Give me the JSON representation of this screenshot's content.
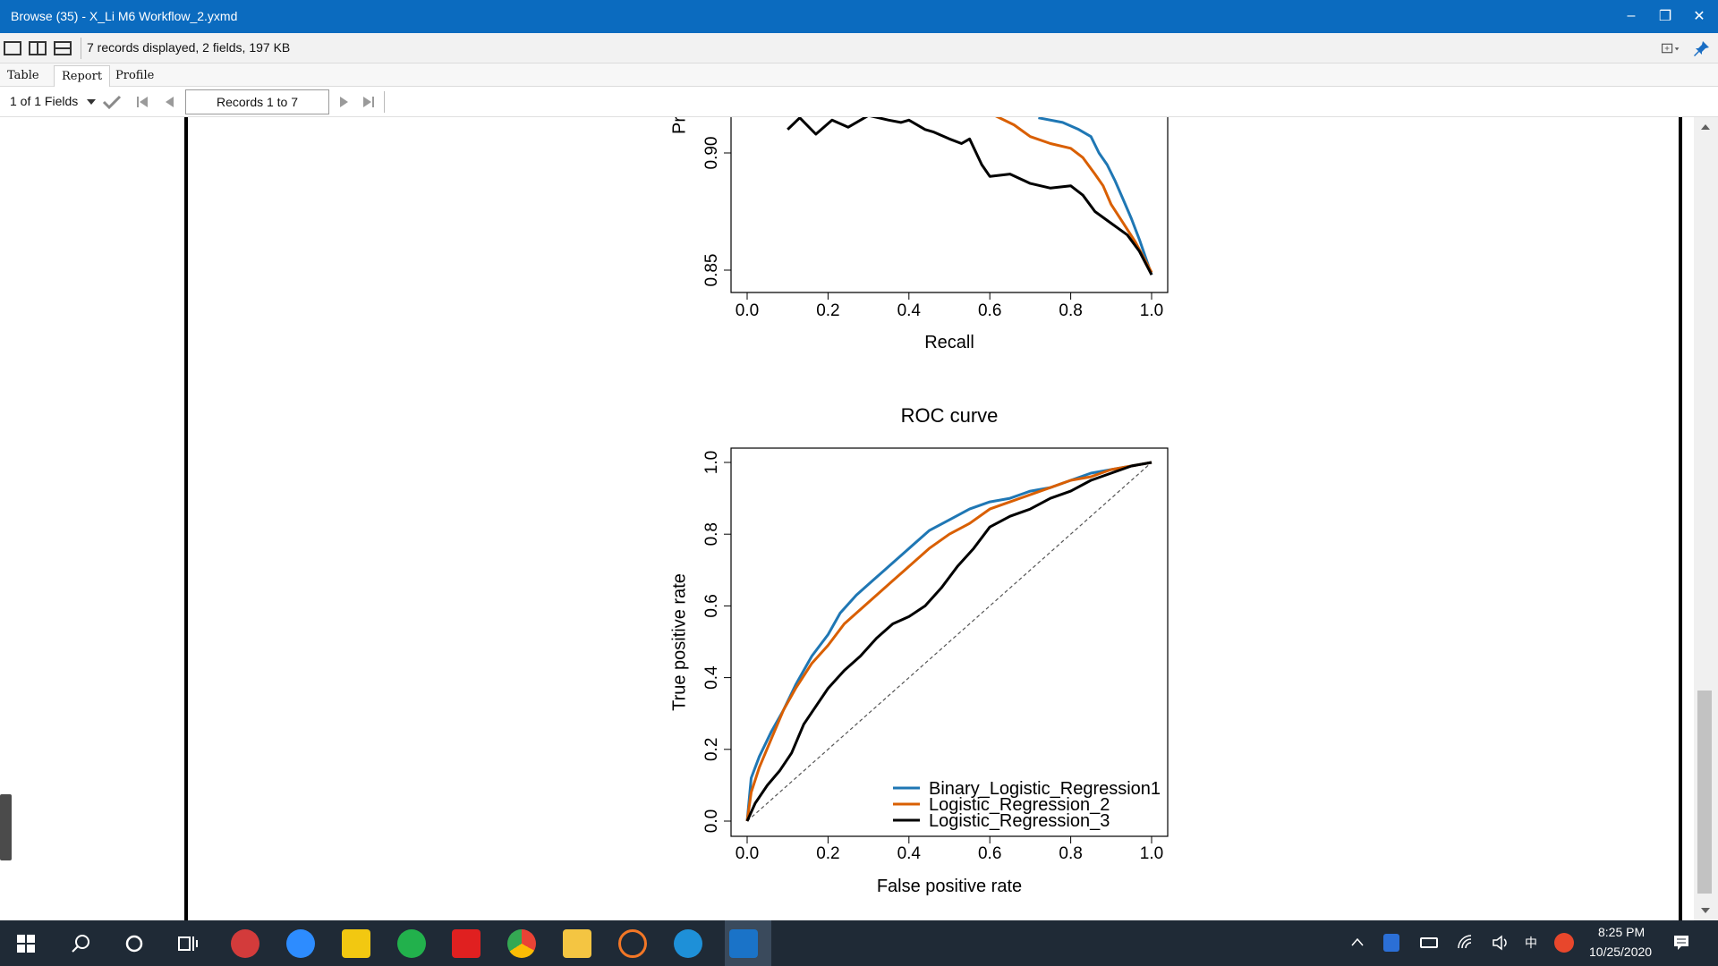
{
  "window": {
    "title": "Browse (35) - X_Li M6 Workflow_2.yxmd",
    "buttons": {
      "minimize": "–",
      "restore": "❐",
      "close": "✕"
    }
  },
  "toolbar": {
    "summary": "7 records displayed, 2 fields, 197 KB"
  },
  "tabs": [
    {
      "label": "Table",
      "active": false
    },
    {
      "label": "Report",
      "active": true
    },
    {
      "label": "Profile",
      "active": false
    }
  ],
  "navbar": {
    "fields_label": "1 of 1 Fields",
    "records_label": "Records 1 to 7"
  },
  "colors": {
    "titlebar": "#0b6bbf",
    "series_blue": "#1f77b4",
    "series_orange": "#d95f02",
    "series_black": "#000000"
  },
  "chart_data": [
    {
      "type": "line",
      "title": "",
      "xlabel": "Recall",
      "ylabel": "Pr",
      "xlim": [
        0.0,
        1.0
      ],
      "ylim": [
        0.85,
        0.92
      ],
      "x_ticks": [
        "0.0",
        "0.2",
        "0.4",
        "0.6",
        "0.8",
        "1.0"
      ],
      "y_ticks": [
        "0.85",
        "0.90"
      ],
      "partially_visible": true,
      "series": [
        {
          "color": "#1f77b4",
          "x": [
            0.72,
            0.78,
            0.82,
            0.85,
            0.87,
            0.89,
            0.91,
            0.93,
            0.95,
            0.97,
            1.0
          ],
          "y": [
            0.915,
            0.913,
            0.91,
            0.907,
            0.9,
            0.895,
            0.888,
            0.88,
            0.872,
            0.863,
            0.848
          ]
        },
        {
          "color": "#d95f02",
          "x": [
            0.6,
            0.66,
            0.7,
            0.75,
            0.8,
            0.83,
            0.86,
            0.88,
            0.9,
            0.93,
            0.96,
            1.0
          ],
          "y": [
            0.917,
            0.912,
            0.907,
            0.904,
            0.902,
            0.898,
            0.891,
            0.886,
            0.878,
            0.87,
            0.862,
            0.849
          ]
        },
        {
          "color": "#000000",
          "x": [
            0.1,
            0.13,
            0.17,
            0.21,
            0.25,
            0.3,
            0.35,
            0.38,
            0.4,
            0.44,
            0.46,
            0.5,
            0.53,
            0.55,
            0.58,
            0.6,
            0.65,
            0.7,
            0.75,
            0.8,
            0.83,
            0.86,
            0.9,
            0.94,
            0.97,
            1.0
          ],
          "y": [
            0.91,
            0.915,
            0.908,
            0.914,
            0.911,
            0.916,
            0.914,
            0.913,
            0.914,
            0.91,
            0.909,
            0.906,
            0.904,
            0.906,
            0.895,
            0.89,
            0.891,
            0.887,
            0.885,
            0.886,
            0.882,
            0.875,
            0.87,
            0.865,
            0.858,
            0.848
          ]
        }
      ]
    },
    {
      "type": "line",
      "title": "ROC curve",
      "xlabel": "False positive rate",
      "ylabel": "True positive rate",
      "xlim": [
        0.0,
        1.0
      ],
      "ylim": [
        0.0,
        1.0
      ],
      "x_ticks": [
        "0.0",
        "0.2",
        "0.4",
        "0.6",
        "0.8",
        "1.0"
      ],
      "y_ticks": [
        "0.0",
        "0.2",
        "0.4",
        "0.6",
        "0.8",
        "1.0"
      ],
      "legend_position": "bottom-right",
      "diagonal_reference": true,
      "series": [
        {
          "name": "Binary_Logistic_Regression1",
          "color": "#1f77b4",
          "x": [
            0.0,
            0.01,
            0.03,
            0.06,
            0.09,
            0.12,
            0.16,
            0.2,
            0.23,
            0.27,
            0.31,
            0.35,
            0.4,
            0.45,
            0.5,
            0.55,
            0.6,
            0.65,
            0.7,
            0.75,
            0.8,
            0.85,
            0.9,
            0.95,
            1.0
          ],
          "y": [
            0.0,
            0.12,
            0.18,
            0.25,
            0.31,
            0.38,
            0.46,
            0.52,
            0.58,
            0.63,
            0.67,
            0.71,
            0.76,
            0.81,
            0.84,
            0.87,
            0.89,
            0.9,
            0.92,
            0.93,
            0.95,
            0.97,
            0.98,
            0.99,
            1.0
          ]
        },
        {
          "name": "Logistic_Regression_2",
          "color": "#d95f02",
          "x": [
            0.0,
            0.01,
            0.03,
            0.06,
            0.09,
            0.12,
            0.16,
            0.2,
            0.24,
            0.28,
            0.32,
            0.36,
            0.4,
            0.45,
            0.5,
            0.55,
            0.6,
            0.65,
            0.7,
            0.75,
            0.8,
            0.85,
            0.9,
            0.95,
            1.0
          ],
          "y": [
            0.0,
            0.08,
            0.15,
            0.23,
            0.31,
            0.37,
            0.44,
            0.49,
            0.55,
            0.59,
            0.63,
            0.67,
            0.71,
            0.76,
            0.8,
            0.83,
            0.87,
            0.89,
            0.91,
            0.93,
            0.95,
            0.96,
            0.98,
            0.99,
            1.0
          ]
        },
        {
          "name": "Logistic_Regression_3",
          "color": "#000000",
          "x": [
            0.0,
            0.02,
            0.05,
            0.08,
            0.11,
            0.14,
            0.17,
            0.2,
            0.24,
            0.28,
            0.32,
            0.36,
            0.4,
            0.44,
            0.48,
            0.52,
            0.56,
            0.6,
            0.65,
            0.7,
            0.75,
            0.8,
            0.85,
            0.9,
            0.95,
            1.0
          ],
          "y": [
            0.0,
            0.05,
            0.1,
            0.14,
            0.19,
            0.27,
            0.32,
            0.37,
            0.42,
            0.46,
            0.51,
            0.55,
            0.57,
            0.6,
            0.65,
            0.71,
            0.76,
            0.82,
            0.85,
            0.87,
            0.9,
            0.92,
            0.95,
            0.97,
            0.99,
            1.0
          ]
        }
      ]
    }
  ],
  "taskbar": {
    "time": "8:25 PM",
    "date": "10/25/2020",
    "ime": "中"
  }
}
